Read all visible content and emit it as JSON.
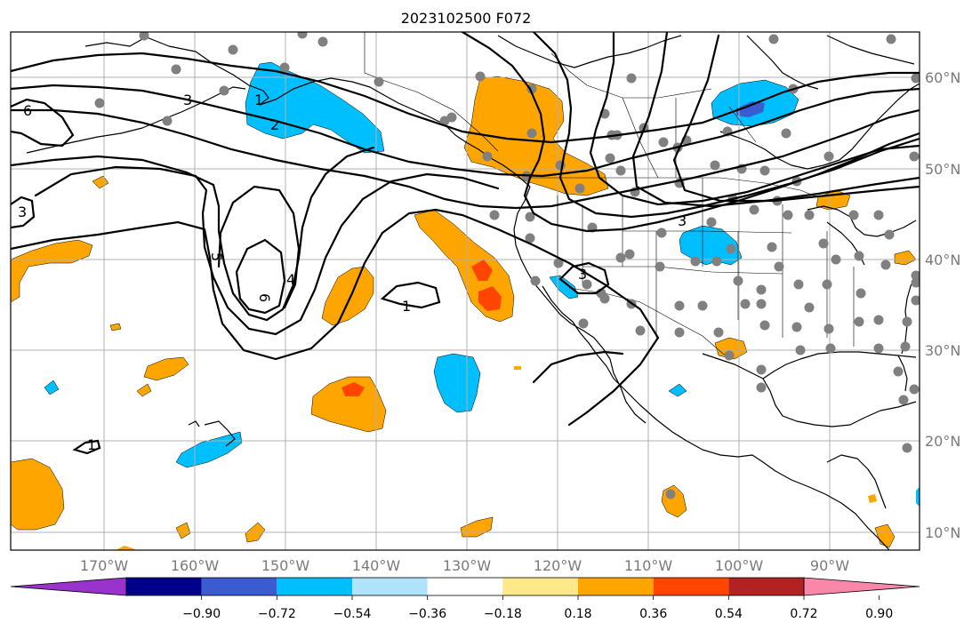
{
  "title": "2023102500 F072",
  "lon_labels": [
    "170°W",
    "160°W",
    "150°W",
    "140°W",
    "130°W",
    "120°W",
    "110°W",
    "100°W",
    "90°W"
  ],
  "lat_labels": [
    "60°N",
    "50°N",
    "40°N",
    "30°N",
    "20°N",
    "10°N"
  ],
  "colorbar": {
    "tick_labels": [
      "−0.90",
      "−0.72",
      "−0.54",
      "−0.36",
      "−0.18",
      "0.18",
      "0.36",
      "0.54",
      "0.72",
      "0.90"
    ],
    "colors": [
      "#9933cc",
      "#00008b",
      "#3b5bd0",
      "#00bfff",
      "#aee3fa",
      "#ffffff",
      "#fde88a",
      "#ffa500",
      "#ff4500",
      "#b22222",
      "#f987a9"
    ]
  },
  "contour_labels": [
    "6",
    "3",
    "2",
    "3",
    "1",
    "5",
    "6",
    "4",
    "1",
    "3",
    "3",
    "1"
  ],
  "palette": {
    "land_line": "#000000",
    "grid": "#b0b0b0",
    "station": "#808080",
    "orange": "#ffa500",
    "red": "#ff4500",
    "blue": "#00bfff",
    "lightblue": "#aee3fa",
    "darkblue": "#3b5bd0"
  }
}
